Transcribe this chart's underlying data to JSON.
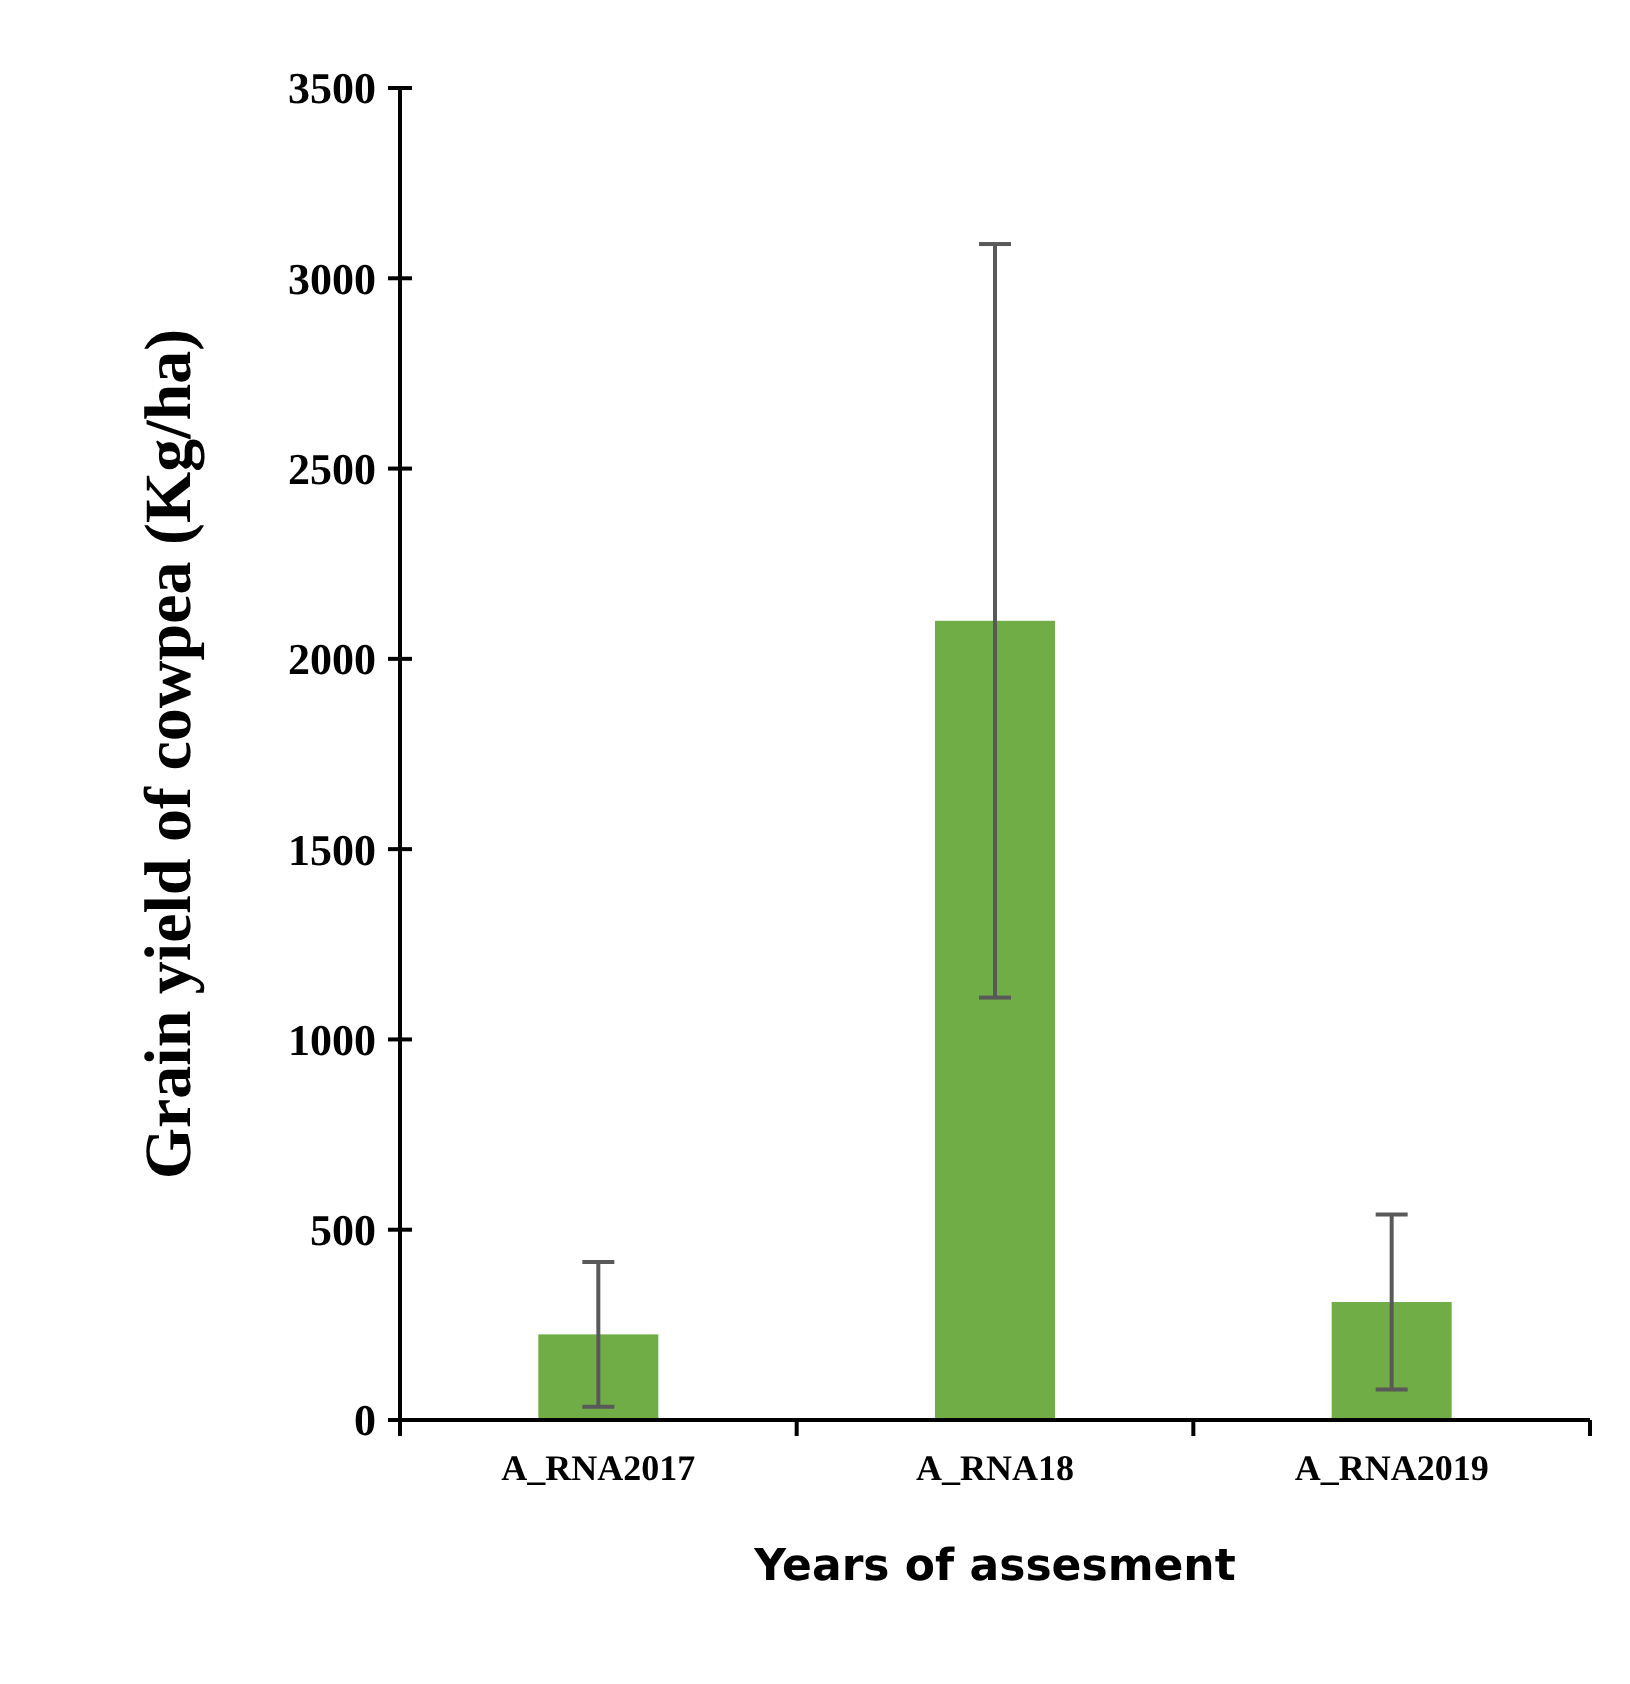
{
  "chart_data": {
    "type": "bar",
    "categories": [
      "A_RNA2017",
      "A_RNA18",
      "A_RNA2019"
    ],
    "values": [
      225,
      2100,
      310
    ],
    "errors": [
      190,
      990,
      230
    ],
    "color": "#70ad47",
    "xlabel": "Years of assesment",
    "ylabel": "Grain yield of cowpea (Kg/ha)",
    "ylim": [
      0,
      3500
    ],
    "yticks": [
      0,
      500,
      1000,
      1500,
      2000,
      2500,
      3000,
      3500
    ],
    "grid": false
  }
}
